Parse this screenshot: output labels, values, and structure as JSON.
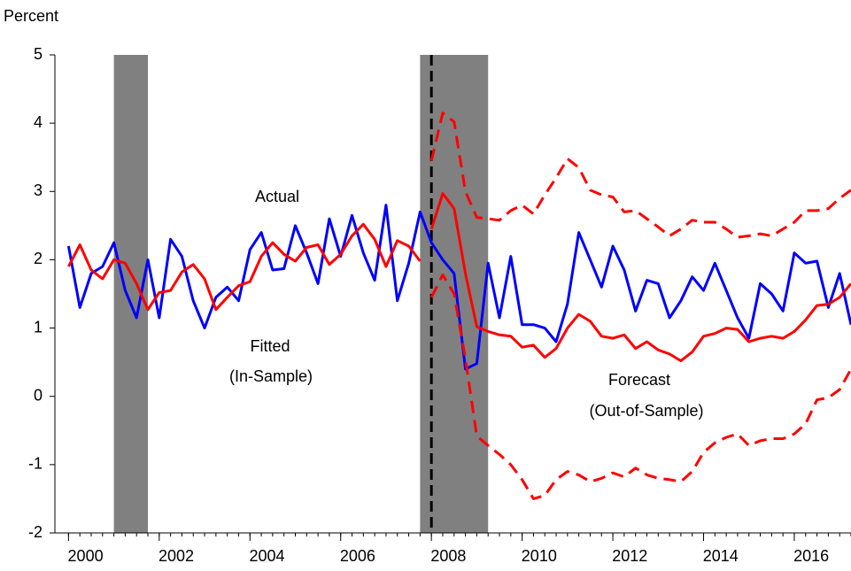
{
  "chart_data": {
    "type": "line",
    "ylabel": "Percent",
    "x": [
      2000,
      2000.25,
      2000.5,
      2000.75,
      2001,
      2001.25,
      2001.5,
      2001.75,
      2002,
      2002.25,
      2002.5,
      2002.75,
      2003,
      2003.25,
      2003.5,
      2003.75,
      2004,
      2004.25,
      2004.5,
      2004.75,
      2005,
      2005.25,
      2005.5,
      2005.75,
      2006,
      2006.25,
      2006.5,
      2006.75,
      2007,
      2007.25,
      2007.5,
      2007.75,
      2008,
      2008.25,
      2008.5,
      2008.75,
      2009,
      2009.25,
      2009.5,
      2009.75,
      2010,
      2010.25,
      2010.5,
      2010.75,
      2011,
      2011.25,
      2011.5,
      2011.75,
      2012,
      2012.25,
      2012.5,
      2012.75,
      2013,
      2013.25,
      2013.5,
      2013.75,
      2014,
      2014.25,
      2014.5,
      2014.75,
      2015,
      2015.25,
      2015.5,
      2015.75,
      2016,
      2016.25,
      2016.5,
      2016.75,
      2017,
      2017.25
    ],
    "series": [
      {
        "color": "#0000ff",
        "dashed": false,
        "values": [
          2.2,
          1.3,
          1.8,
          1.9,
          2.25,
          1.55,
          1.15,
          2.0,
          1.15,
          2.3,
          2.05,
          1.4,
          1.0,
          1.45,
          1.6,
          1.4,
          2.15,
          2.4,
          1.85,
          1.87,
          2.5,
          2.1,
          1.65,
          2.6,
          2.05,
          2.65,
          2.1,
          1.7,
          2.8,
          1.4,
          1.95,
          2.7,
          2.25,
          2.0,
          1.8,
          0.4,
          0.48,
          1.95,
          1.15,
          2.05,
          1.05,
          1.05,
          1.0,
          0.8,
          1.35,
          2.4,
          2.0,
          1.6,
          2.2,
          1.85,
          1.25,
          1.7,
          1.65,
          1.15,
          1.4,
          1.75,
          1.55,
          1.95,
          1.55,
          1.15,
          0.85,
          1.65,
          1.5,
          1.25,
          2.1,
          1.95,
          1.98,
          1.3,
          1.8,
          1.05
        ]
      },
      {
        "color": "#ff0000",
        "dashed": false,
        "values": [
          1.9,
          2.22,
          1.85,
          1.72,
          2.0,
          1.95,
          1.65,
          1.27,
          1.52,
          1.55,
          1.82,
          1.93,
          1.72,
          1.27,
          1.45,
          1.62,
          1.68,
          2.05,
          2.25,
          2.08,
          1.98,
          2.18,
          2.22,
          1.93,
          2.08,
          2.35,
          2.52,
          2.3,
          1.9,
          2.28,
          2.2,
          1.98,
          null,
          null,
          null,
          null,
          null,
          null,
          null,
          null,
          null,
          null,
          null,
          null,
          null,
          null,
          null,
          null,
          null,
          null,
          null,
          null,
          null,
          null,
          null,
          null,
          null,
          null,
          null,
          null,
          null,
          null,
          null,
          null,
          null,
          null,
          null,
          null,
          null,
          null
        ]
      },
      {
        "color": "#ff0000",
        "dashed": false,
        "values": [
          null,
          null,
          null,
          null,
          null,
          null,
          null,
          null,
          null,
          null,
          null,
          null,
          null,
          null,
          null,
          null,
          null,
          null,
          null,
          null,
          null,
          null,
          null,
          null,
          null,
          null,
          null,
          null,
          null,
          null,
          null,
          null,
          2.45,
          2.97,
          2.75,
          1.8,
          1.02,
          0.95,
          0.9,
          0.88,
          0.72,
          0.75,
          0.57,
          0.7,
          1.0,
          1.2,
          1.1,
          0.88,
          0.85,
          0.9,
          0.7,
          0.8,
          0.68,
          0.62,
          0.52,
          0.65,
          0.88,
          0.92,
          1.0,
          0.98,
          0.8,
          0.85,
          0.88,
          0.85,
          0.95,
          1.12,
          1.33,
          1.35,
          1.45,
          1.65
        ]
      },
      {
        "color": "#ff0000",
        "dashed": true,
        "values": [
          null,
          null,
          null,
          null,
          null,
          null,
          null,
          null,
          null,
          null,
          null,
          null,
          null,
          null,
          null,
          null,
          null,
          null,
          null,
          null,
          null,
          null,
          null,
          null,
          null,
          null,
          null,
          null,
          null,
          null,
          null,
          null,
          3.45,
          4.15,
          4.02,
          3.0,
          2.62,
          2.6,
          2.58,
          2.72,
          2.8,
          2.67,
          2.95,
          3.2,
          3.48,
          3.35,
          3.02,
          2.95,
          2.92,
          2.7,
          2.72,
          2.6,
          2.48,
          2.35,
          2.45,
          2.58,
          2.55,
          2.55,
          2.45,
          2.33,
          2.35,
          2.38,
          2.35,
          2.45,
          2.55,
          2.72,
          2.72,
          2.75,
          2.9,
          3.02
        ]
      },
      {
        "color": "#ff0000",
        "dashed": true,
        "values": [
          null,
          null,
          null,
          null,
          null,
          null,
          null,
          null,
          null,
          null,
          null,
          null,
          null,
          null,
          null,
          null,
          null,
          null,
          null,
          null,
          null,
          null,
          null,
          null,
          null,
          null,
          null,
          null,
          null,
          null,
          null,
          null,
          1.45,
          1.78,
          1.5,
          0.55,
          -0.58,
          -0.72,
          -0.85,
          -1.0,
          -1.22,
          -1.5,
          -1.45,
          -1.22,
          -1.1,
          -1.15,
          -1.25,
          -1.2,
          -1.12,
          -1.18,
          -1.05,
          -1.15,
          -1.2,
          -1.22,
          -1.25,
          -1.1,
          -0.82,
          -0.68,
          -0.6,
          -0.55,
          -0.72,
          -0.65,
          -0.62,
          -0.62,
          -0.55,
          -0.4,
          -0.05,
          -0.02,
          0.1,
          0.4
        ]
      }
    ],
    "shaded": [
      {
        "start": 2001,
        "end": 2001.75
      },
      {
        "start": 2007.75,
        "end": 2009.25
      }
    ],
    "shade_color": "#808080",
    "vline": 2008,
    "annotations": [
      {
        "text": "Actual",
        "color": "#0000ff"
      },
      {
        "text": "Fitted",
        "color": "#ff0000"
      },
      {
        "text": "(In-Sample)",
        "color": "#ff0000"
      },
      {
        "text": "Forecast",
        "color": "#ff0000"
      },
      {
        "text": "(Out-of-Sample)",
        "color": "#ff0000"
      }
    ],
    "xlim": [
      1999.7,
      2017.25
    ],
    "ylim": [
      -2,
      5
    ],
    "xticks": [
      2000,
      2002,
      2004,
      2006,
      2008,
      2010,
      2012,
      2014,
      2016
    ],
    "yticks": [
      -2,
      -1,
      0,
      1,
      2,
      3,
      4,
      5
    ],
    "grid": false
  }
}
